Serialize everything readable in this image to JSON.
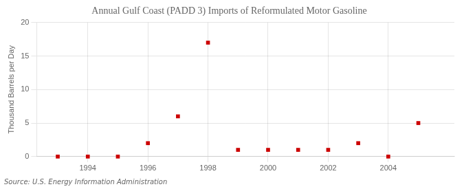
{
  "chart_data": {
    "type": "scatter",
    "title": "Annual Gulf Coast (PADD 3) Imports of Reformulated Motor Gasoline",
    "ylabel": "Thousand Barrels per Day",
    "annotations": [
      "Source: U.S. Energy Information Administration"
    ],
    "x": [
      1993,
      1994,
      1995,
      1996,
      1997,
      1998,
      1999,
      2000,
      2001,
      2002,
      2003,
      2004,
      2005
    ],
    "values": [
      0.0,
      0.0,
      0.0,
      2.0,
      6.0,
      17.0,
      1.0,
      1.0,
      1.0,
      1.0,
      2.0,
      0.0,
      5.0
    ],
    "color": "#cc0000",
    "marker": "square",
    "xlim": [
      1992.3,
      2006.2
    ],
    "xticks": [
      1994,
      1996,
      1998,
      2000,
      2002,
      2004
    ],
    "ylim": [
      0,
      20
    ],
    "yticks": [
      0,
      5,
      10,
      15,
      20
    ],
    "grid": true
  }
}
